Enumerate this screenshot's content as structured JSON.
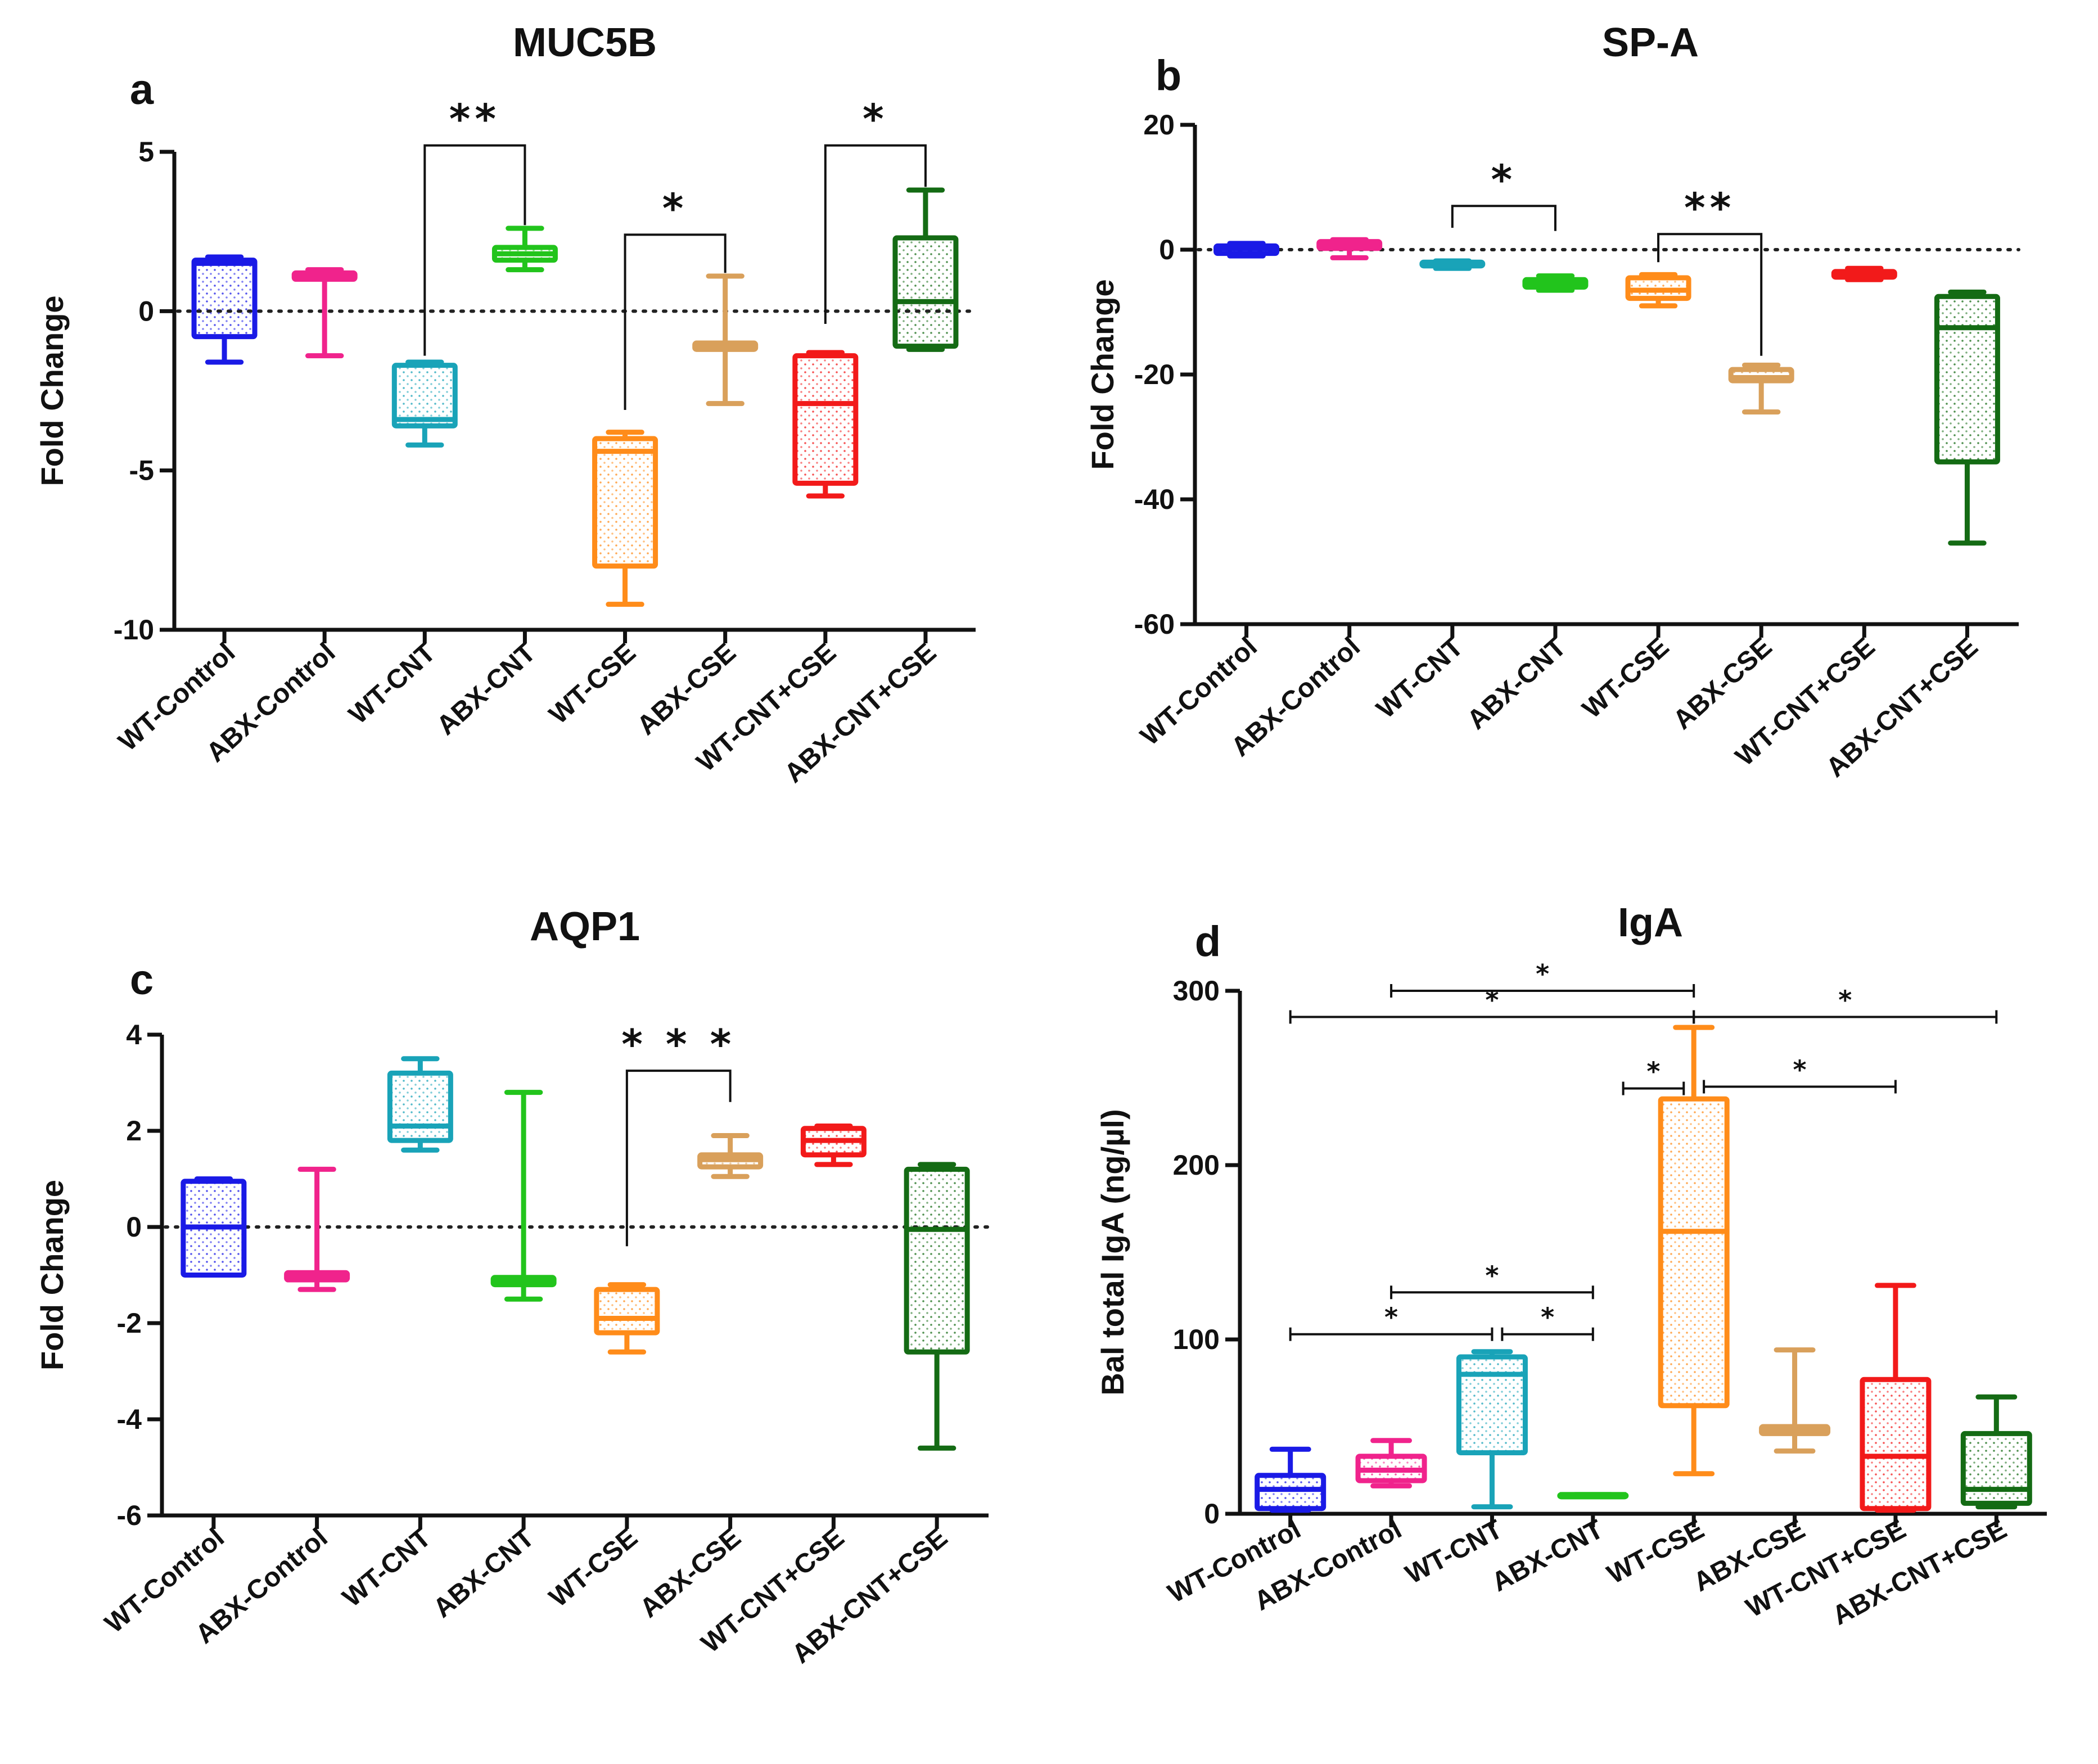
{
  "colors": {
    "WT-Control": "#1a1ae6",
    "ABX-Control": "#f0238c",
    "WT-CNT": "#19a3b8",
    "ABX-CNT": "#22c41c",
    "WT-CSE": "#ff8c1a",
    "ABX-CSE": "#d9a05b",
    "WT-CNT+CSE": "#f21a1a",
    "ABX-CNT+CSE": "#146b14"
  },
  "chart_data": [
    {
      "id": "a",
      "panel_letter": "a",
      "type": "box",
      "title": "MUC5B",
      "ylabel": "Fold Change",
      "xlabel": "",
      "ylim": [
        -10,
        5
      ],
      "yticks": [
        5,
        0,
        -5,
        -10
      ],
      "zero_line": true,
      "categories": [
        "WT-Control",
        "ABX-Control",
        "WT-CNT",
        "ABX-CNT",
        "WT-CSE",
        "ABX-CSE",
        "WT-CNT+CSE",
        "ABX-CNT+CSE"
      ],
      "boxes": [
        {
          "min": -1.6,
          "q1": -0.8,
          "median": 1.5,
          "q3": 1.6,
          "max": 1.7
        },
        {
          "min": -1.4,
          "q1": 1.0,
          "median": 1.1,
          "q3": 1.2,
          "max": 1.3
        },
        {
          "min": -4.2,
          "q1": -3.6,
          "median": -3.4,
          "q3": -1.7,
          "max": -1.6
        },
        {
          "min": 1.3,
          "q1": 1.6,
          "median": 1.8,
          "q3": 2.0,
          "max": 2.6
        },
        {
          "min": -9.2,
          "q1": -8.0,
          "median": -4.4,
          "q3": -4.0,
          "max": -3.8
        },
        {
          "min": -2.9,
          "q1": -1.2,
          "median": -1.1,
          "q3": -1.0,
          "max": 1.1
        },
        {
          "min": -5.8,
          "q1": -5.4,
          "median": -2.9,
          "q3": -1.4,
          "max": -1.3
        },
        {
          "min": -1.2,
          "q1": -1.1,
          "median": 0.3,
          "q3": 2.3,
          "max": 3.8
        }
      ],
      "significance": [
        {
          "from": 2,
          "to": 3,
          "label": "**",
          "level": 5.2,
          "drop_from": -1.4,
          "drop_to": 2.7
        },
        {
          "from": 4,
          "to": 5,
          "label": "*",
          "level": 2.4,
          "drop_from": -3.1,
          "drop_to": 1.2
        },
        {
          "from": 6,
          "to": 7,
          "label": "*",
          "level": 5.2,
          "drop_from": -0.4,
          "drop_to": 3.9
        }
      ]
    },
    {
      "id": "b",
      "panel_letter": "b",
      "type": "box",
      "title": "SP-A",
      "ylabel": "Fold Change",
      "xlabel": "",
      "ylim": [
        -60,
        20
      ],
      "yticks": [
        20,
        0,
        -20,
        -40,
        -60
      ],
      "zero_line": true,
      "categories": [
        "WT-Control",
        "ABX-Control",
        "WT-CNT",
        "ABX-CNT",
        "WT-CSE",
        "ABX-CSE",
        "WT-CNT+CSE",
        "ABX-CNT+CSE"
      ],
      "boxes": [
        {
          "min": -1.0,
          "q1": -0.6,
          "median": 0.2,
          "q3": 0.6,
          "max": 1.0
        },
        {
          "min": -1.3,
          "q1": 0.2,
          "median": 0.8,
          "q3": 1.3,
          "max": 1.6
        },
        {
          "min": -3.0,
          "q1": -2.6,
          "median": -2.3,
          "q3": -2.0,
          "max": -1.8
        },
        {
          "min": -6.5,
          "q1": -6.0,
          "median": -5.5,
          "q3": -4.8,
          "max": -4.2
        },
        {
          "min": -9.0,
          "q1": -7.8,
          "median": -6.5,
          "q3": -4.5,
          "max": -4.0
        },
        {
          "min": -26.0,
          "q1": -21.0,
          "median": -20.5,
          "q3": -19.2,
          "max": -18.5
        },
        {
          "min": -4.8,
          "q1": -4.4,
          "median": -4.0,
          "q3": -3.5,
          "max": -3.0
        },
        {
          "min": -47.0,
          "q1": -34.0,
          "median": -12.5,
          "q3": -7.5,
          "max": -6.8
        }
      ],
      "significance": [
        {
          "from": 2,
          "to": 3,
          "label": "*",
          "level": 7.0,
          "drop_from": 3.5,
          "drop_to": 3.0
        },
        {
          "from": 4,
          "to": 5,
          "label": "**",
          "level": 2.5,
          "drop_from": -2.0,
          "drop_to": -17.0
        }
      ]
    },
    {
      "id": "c",
      "panel_letter": "c",
      "type": "box",
      "title": "AQP1",
      "ylabel": "Fold Change",
      "xlabel": "",
      "ylim": [
        -6,
        4
      ],
      "yticks": [
        4,
        2,
        0,
        -2,
        -4,
        -6
      ],
      "zero_line": true,
      "categories": [
        "WT-Control",
        "ABX-Control",
        "WT-CNT",
        "ABX-CNT",
        "WT-CSE",
        "ABX-CSE",
        "WT-CNT+CSE",
        "ABX-CNT+CSE"
      ],
      "boxes": [
        {
          "min": -1.0,
          "q1": -1.0,
          "median": 0.0,
          "q3": 0.95,
          "max": 1.0
        },
        {
          "min": -1.3,
          "q1": -1.1,
          "median": -1.0,
          "q3": -0.95,
          "max": 1.2
        },
        {
          "min": 1.6,
          "q1": 1.8,
          "median": 2.1,
          "q3": 3.2,
          "max": 3.5
        },
        {
          "min": -1.5,
          "q1": -1.2,
          "median": -1.1,
          "q3": -1.05,
          "max": 2.8
        },
        {
          "min": -2.6,
          "q1": -2.2,
          "median": -1.9,
          "q3": -1.3,
          "max": -1.2
        },
        {
          "min": 1.05,
          "q1": 1.25,
          "median": 1.4,
          "q3": 1.5,
          "max": 1.9
        },
        {
          "min": 1.3,
          "q1": 1.5,
          "median": 1.8,
          "q3": 2.05,
          "max": 2.1
        },
        {
          "min": -4.6,
          "q1": -2.6,
          "median": -0.05,
          "q3": 1.2,
          "max": 1.3
        }
      ],
      "significance": [
        {
          "from": 4,
          "to": 5,
          "label": "* * *",
          "level": 3.25,
          "drop_from": -0.4,
          "drop_to": 2.6
        }
      ]
    },
    {
      "id": "d",
      "panel_letter": "d",
      "type": "box",
      "title": "IgA",
      "ylabel": "Bal total IgA (ng/µl)",
      "xlabel": "",
      "ylim": [
        0,
        300
      ],
      "yticks": [
        300,
        200,
        100,
        0
      ],
      "zero_line": false,
      "categories": [
        "WT-Control",
        "ABX-Control",
        "WT-CNT",
        "ABX-CNT",
        "WT-CSE",
        "ABX-CSE",
        "WT-CNT+CSE",
        "ABX-CNT+CSE"
      ],
      "boxes": [
        {
          "min": 2,
          "q1": 3,
          "median": 14,
          "q3": 22,
          "max": 37
        },
        {
          "min": 16,
          "q1": 19,
          "median": 25,
          "q3": 33,
          "max": 42
        },
        {
          "min": 4,
          "q1": 35,
          "median": 80,
          "q3": 90,
          "max": 93
        },
        {
          "min": 10,
          "q1": 10,
          "median": 11,
          "q3": 11,
          "max": 11
        },
        {
          "min": 23,
          "q1": 62,
          "median": 162,
          "q3": 238,
          "max": 279
        },
        {
          "min": 36,
          "q1": 46,
          "median": 48,
          "q3": 50,
          "max": 94
        },
        {
          "min": 2,
          "q1": 3,
          "median": 33,
          "q3": 77,
          "max": 131
        },
        {
          "min": 4,
          "q1": 6,
          "median": 14,
          "q3": 46,
          "max": 67
        }
      ],
      "significance": [
        {
          "from": 1,
          "to": 4,
          "label": "*",
          "level": 300
        },
        {
          "from": 0,
          "to": 4,
          "label": "*",
          "level": 285
        },
        {
          "from": 4,
          "to": 7,
          "label": "*",
          "level": 285
        },
        {
          "from": 3.3,
          "to": 3.9,
          "label": "*",
          "level": 244
        },
        {
          "from": 4.1,
          "to": 6,
          "label": "*",
          "level": 245
        },
        {
          "from": 1,
          "to": 3,
          "label": "*",
          "level": 127
        },
        {
          "from": 0,
          "to": 2,
          "label": "*",
          "level": 103
        },
        {
          "from": 2.1,
          "to": 3,
          "label": "*",
          "level": 103
        }
      ]
    }
  ]
}
